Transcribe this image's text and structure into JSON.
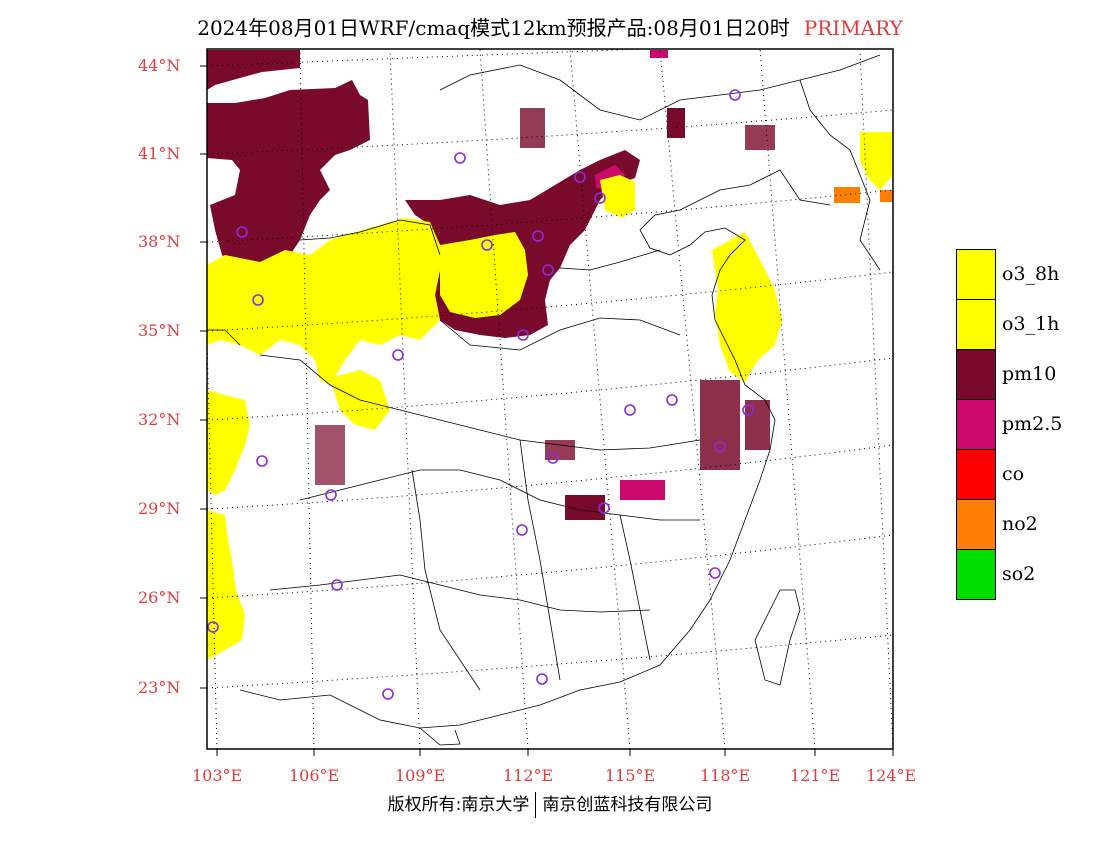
{
  "title": {
    "main": "2024年08月01日WRF/cmaq模式12km预报产品:08月01日20时",
    "tag": "PRIMARY"
  },
  "axes": {
    "lat_labels": [
      "44°N",
      "41°N",
      "38°N",
      "35°N",
      "32°N",
      "29°N",
      "26°N",
      "23°N"
    ],
    "lon_labels": [
      "103°E",
      "106°E",
      "109°E",
      "112°E",
      "115°E",
      "118°E",
      "121°E",
      "124°E"
    ]
  },
  "legend": [
    {
      "label": "o3_8h",
      "color": "#ffff00"
    },
    {
      "label": "o3_1h",
      "color": "#ffff00"
    },
    {
      "label": "pm10",
      "color": "#7a0a2c"
    },
    {
      "label": "pm2.5",
      "color": "#cc0a6e"
    },
    {
      "label": "co",
      "color": "#ff0000"
    },
    {
      "label": "no2",
      "color": "#ff7f00"
    },
    {
      "label": "so2",
      "color": "#00dd00"
    }
  ],
  "colors": {
    "o3": "#ffff00",
    "pm10": "#7a0a2c",
    "pm25": "#cc0a6e",
    "no2": "#ff7f00",
    "station": "#8a2be2",
    "label_red": "#e23b3b"
  },
  "footer": {
    "left": "版权所有:南京大学",
    "right": "南京创蓝科技有限公司"
  }
}
